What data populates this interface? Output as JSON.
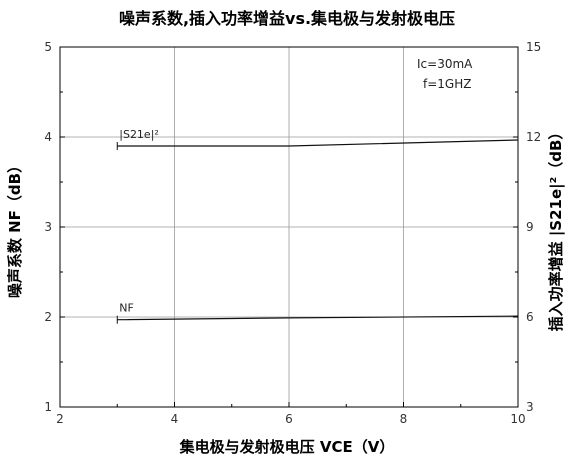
{
  "chart_data": {
    "type": "line",
    "title": "噪声系数,插入功率增益vs.集电极与发射极电压",
    "xlabel": "集电极与发射极电压 VCE（V）",
    "ylabel_left": "噪声系数 NF（dB）",
    "ylabel_right": "插入功率增益 |S21e|²（dB）",
    "xlim": [
      2,
      10
    ],
    "ylim_left": [
      1,
      5
    ],
    "ylim_right": [
      3,
      15
    ],
    "x_ticks": [
      "2",
      "4",
      "6",
      "8",
      "10"
    ],
    "y_ticks_left": [
      "1",
      "2",
      "3",
      "4",
      "5"
    ],
    "y_ticks_right": [
      "3",
      "6",
      "9",
      "12",
      "15"
    ],
    "grid": true,
    "annotations": [
      "Ic=30mA",
      "f=1GHZ"
    ],
    "series": [
      {
        "name": "|S21e|²",
        "axis": "right",
        "x": [
          3,
          6,
          10
        ],
        "y": [
          11.7,
          11.7,
          11.9
        ]
      },
      {
        "name": "NF",
        "axis": "left",
        "x": [
          3,
          6,
          10
        ],
        "y": [
          1.97,
          1.99,
          2.01
        ]
      }
    ]
  }
}
